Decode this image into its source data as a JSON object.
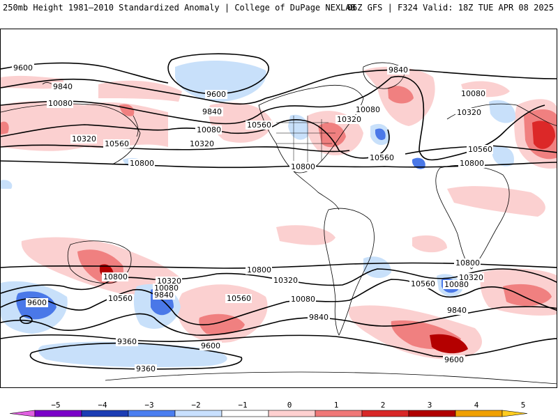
{
  "header": {
    "left": "250mb Height 1981–2010 Standardized Anomaly | College of DuPage NEXLAB",
    "right": "06Z GFS | F324 Valid: 18Z TUE APR 08 2025"
  },
  "contour_labels": [
    "9600",
    "9840",
    "10080",
    "10320",
    "10560",
    "10800",
    "9360"
  ],
  "colorbar": {
    "ticks": [
      "−5",
      "−4",
      "−3",
      "−2",
      "−1",
      "0",
      "1",
      "2",
      "3",
      "4",
      "5"
    ],
    "colors": [
      "#e060e0",
      "#7a00c8",
      "#1a3cb4",
      "#4a7ef0",
      "#c8e0ff",
      "#ffffff",
      "#ffd0d0",
      "#f07878",
      "#d82828",
      "#b00000",
      "#f0a000",
      "#ffcc20"
    ]
  },
  "colors": {
    "pos1": "#fbd0d0",
    "pos2": "#f08080",
    "pos3": "#dc2828",
    "pos4": "#b40000",
    "neg1": "#c8e0fa",
    "neg2": "#4a78e8",
    "neg3": "#1e46b4"
  }
}
